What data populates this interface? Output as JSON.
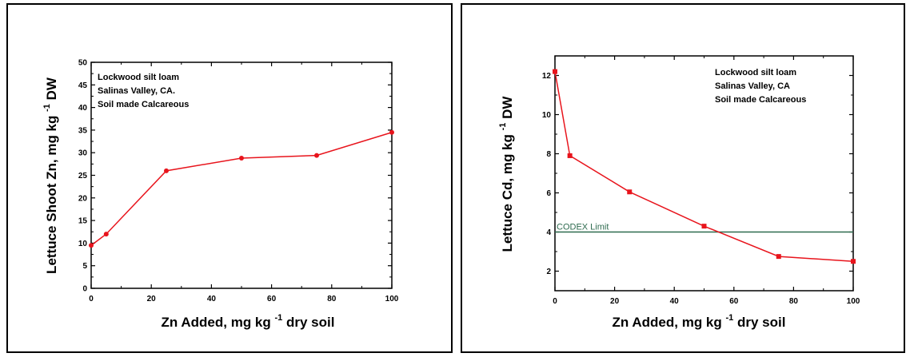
{
  "chart_data": [
    {
      "type": "line",
      "x": [
        0,
        5,
        25,
        50,
        75,
        100
      ],
      "series": [
        {
          "values": [
            9.5,
            12,
            26,
            28.8,
            29.4,
            34.5
          ],
          "color": "#e8141c",
          "marker": "circle"
        }
      ],
      "xlim": [
        0,
        100
      ],
      "ylim": [
        0,
        50
      ],
      "xticks": [
        0,
        20,
        40,
        60,
        80,
        100
      ],
      "yticks": [
        0,
        5,
        10,
        15,
        20,
        25,
        30,
        35,
        40,
        45,
        50
      ],
      "xlabel": {
        "pre": "Zn Added, mg kg",
        "sup": "-1",
        "post": "dry soil"
      },
      "ylabel": {
        "pre": "Lettuce Shoot Zn, mg kg",
        "sup": "-1",
        "post": "DW"
      },
      "annotations": [
        "Lockwood silt loam",
        "Salinas Valley, CA.",
        "Soil made Calcareous"
      ],
      "grid": false
    },
    {
      "type": "line",
      "x": [
        0,
        5,
        25,
        50,
        75,
        100
      ],
      "series": [
        {
          "values": [
            12.2,
            7.9,
            6.05,
            4.3,
            2.75,
            2.5
          ],
          "color": "#e8141c",
          "marker": "square"
        }
      ],
      "xlim": [
        0,
        100
      ],
      "ylim": [
        1,
        13
      ],
      "xticks": [
        0,
        20,
        40,
        60,
        80,
        100
      ],
      "yticks": [
        2,
        4,
        6,
        8,
        10,
        12
      ],
      "xlabel": {
        "pre": "Zn Added, mg kg",
        "sup": "-1",
        "post": "dry soil"
      },
      "ylabel": {
        "pre": "Lettuce Cd, mg kg",
        "sup": "-1",
        "post": "DW"
      },
      "annotations": [
        "Lockwood silt loam",
        "Salinas Valley, CA",
        "Soil made Calcareous"
      ],
      "reference_line": {
        "y": 4,
        "label": "CODEX Limit",
        "color": "#2e6b4f"
      },
      "grid": false
    }
  ]
}
